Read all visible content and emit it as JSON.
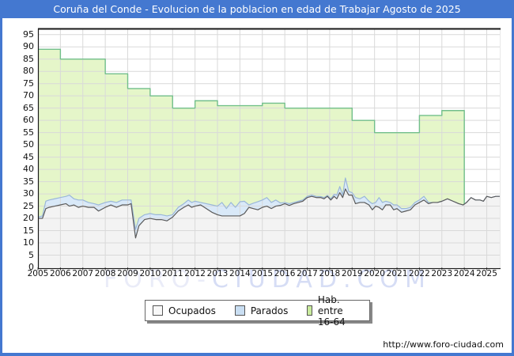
{
  "title": "Coruña del Conde - Evolucion de la poblacion en edad de Trabajar Agosto de 2025",
  "site_url": "http://www.foro-ciudad.com",
  "watermark": {
    "text_left": "FORO-",
    "text_right": "CIUDAD.COM"
  },
  "colors": {
    "title_bar": "#4478d0",
    "frame": "#4478d0",
    "grid": "#d9d9d9",
    "plot_border": "#1a1a1a",
    "watermark_left": "#eaecf8",
    "watermark_right": "#d6ddf5",
    "ocupados_line": "#5a5a5a",
    "ocupados_fill": "#f3f3f3",
    "parados_line": "#9bb7d9",
    "parados_fill": "#d9e9f8",
    "hab_line": "#72bf8b",
    "hab_fill": "#e5f6c9"
  },
  "legend": {
    "items": [
      {
        "label": "Ocupados",
        "color": "#f8f8f8"
      },
      {
        "label": "Parados",
        "color": "#c9def2"
      },
      {
        "label": "Hab. entre 16-64",
        "color": "#c9eb9d"
      }
    ]
  },
  "chart_data": {
    "type": "area",
    "title": "Coruña del Conde - Evolucion de la poblacion en edad de Trabajar Agosto de 2025",
    "xlim": [
      2005,
      2025.58
    ],
    "ylim": [
      0,
      97.5
    ],
    "grid": true,
    "x_tick_labels": [
      "2005",
      "2006",
      "2007",
      "2008",
      "2009",
      "2010",
      "2011",
      "2012",
      "2013",
      "2014",
      "2015",
      "2016",
      "2017",
      "2018",
      "2019",
      "2020",
      "2021",
      "2022",
      "2023",
      "2024",
      "2025"
    ],
    "y_tick_labels": [
      "0",
      "5",
      "10",
      "15",
      "20",
      "25",
      "30",
      "35",
      "40",
      "45",
      "50",
      "55",
      "60",
      "65",
      "70",
      "75",
      "80",
      "85",
      "90",
      "95"
    ],
    "series": [
      {
        "name": "Hab. entre 16-64",
        "type": "step-area-yearly",
        "start_year": 2005,
        "end_year": 2024,
        "values": [
          89,
          85,
          85,
          79,
          73,
          70,
          65,
          68,
          66,
          66,
          67,
          65,
          65,
          65,
          60,
          55,
          55,
          62,
          64
        ]
      },
      {
        "name": "Ocupados",
        "type": "line-area",
        "x": [
          2005.0,
          2005.2,
          2005.35,
          2005.5,
          2005.75,
          2006.0,
          2006.25,
          2006.4,
          2006.6,
          2006.8,
          2007.0,
          2007.25,
          2007.5,
          2007.7,
          2008.0,
          2008.25,
          2008.5,
          2008.75,
          2009.0,
          2009.15,
          2009.35,
          2009.5,
          2009.75,
          2010.0,
          2010.25,
          2010.5,
          2010.75,
          2011.0,
          2011.25,
          2011.5,
          2011.7,
          2011.85,
          2012.0,
          2012.25,
          2012.5,
          2012.75,
          2013.0,
          2013.2,
          2013.4,
          2013.6,
          2013.8,
          2014.0,
          2014.2,
          2014.4,
          2014.6,
          2014.8,
          2015.0,
          2015.2,
          2015.4,
          2015.6,
          2015.8,
          2016.0,
          2016.2,
          2016.4,
          2016.6,
          2016.8,
          2017.0,
          2017.2,
          2017.4,
          2017.6,
          2017.75,
          2017.9,
          2018.05,
          2018.2,
          2018.32,
          2018.45,
          2018.58,
          2018.7,
          2018.85,
          2019.0,
          2019.15,
          2019.35,
          2019.55,
          2019.75,
          2019.9,
          2020.05,
          2020.2,
          2020.35,
          2020.5,
          2020.7,
          2020.85,
          2021.0,
          2021.2,
          2021.4,
          2021.6,
          2021.8,
          2022.0,
          2022.2,
          2022.4,
          2022.6,
          2022.8,
          2023.0,
          2023.25,
          2023.5,
          2023.75,
          2023.95,
          2024.1,
          2024.3,
          2024.5,
          2024.7,
          2024.85,
          2025.0,
          2025.2,
          2025.4,
          2025.58
        ],
        "values": [
          20.0,
          20.0,
          24.0,
          24.5,
          25.0,
          25.5,
          26.0,
          25.0,
          25.5,
          24.5,
          25.0,
          24.5,
          24.5,
          23.0,
          24.5,
          25.5,
          24.5,
          25.5,
          25.5,
          26.0,
          12.0,
          17.0,
          19.5,
          20.0,
          19.5,
          19.5,
          19.0,
          20.5,
          23.0,
          24.5,
          25.5,
          24.5,
          25.0,
          25.5,
          24.0,
          22.5,
          21.5,
          21.0,
          21.0,
          21.0,
          21.0,
          21.0,
          22.0,
          24.5,
          24.0,
          23.5,
          24.5,
          25.0,
          24.0,
          25.0,
          25.3,
          26.0,
          25.3,
          26.0,
          26.5,
          27.0,
          28.5,
          29.0,
          28.5,
          28.5,
          28.0,
          29.0,
          27.5,
          29.0,
          28.0,
          30.5,
          28.5,
          32.0,
          29.5,
          29.5,
          26.0,
          26.5,
          26.5,
          25.5,
          23.5,
          25.0,
          24.5,
          23.5,
          25.5,
          25.5,
          23.5,
          24.0,
          22.5,
          23.0,
          23.5,
          25.5,
          26.5,
          27.5,
          26.0,
          26.5,
          26.5,
          27.0,
          28.0,
          27.0,
          26.0,
          25.5,
          26.5,
          28.5,
          27.5,
          27.5,
          27.0,
          29.0,
          28.5,
          29.0,
          29.0
        ]
      },
      {
        "name": "Parados",
        "type": "band-stacked-on-ocupados",
        "x": [
          2005.0,
          2005.2,
          2005.35,
          2005.5,
          2005.75,
          2006.0,
          2006.25,
          2006.4,
          2006.6,
          2006.8,
          2007.0,
          2007.25,
          2007.5,
          2007.7,
          2008.0,
          2008.25,
          2008.5,
          2008.75,
          2009.0,
          2009.15,
          2009.35,
          2009.5,
          2009.75,
          2010.0,
          2010.25,
          2010.5,
          2010.75,
          2011.0,
          2011.25,
          2011.5,
          2011.7,
          2011.85,
          2012.0,
          2012.25,
          2012.5,
          2012.75,
          2013.0,
          2013.2,
          2013.4,
          2013.6,
          2013.8,
          2014.0,
          2014.2,
          2014.4,
          2014.6,
          2014.8,
          2015.0,
          2015.2,
          2015.4,
          2015.6,
          2015.8,
          2016.0,
          2016.2,
          2016.4,
          2016.6,
          2016.8,
          2017.0,
          2017.2,
          2017.4,
          2017.6,
          2017.75,
          2017.9,
          2018.05,
          2018.2,
          2018.32,
          2018.45,
          2018.58,
          2018.7,
          2018.85,
          2019.0,
          2019.15,
          2019.35,
          2019.55,
          2019.75,
          2019.9,
          2020.05,
          2020.2,
          2020.35,
          2020.5,
          2020.7,
          2020.85,
          2021.0,
          2021.2,
          2021.4,
          2021.6,
          2021.8,
          2022.0,
          2022.2,
          2022.4,
          2022.6,
          2022.8,
          2023.0,
          2023.25,
          2023.5,
          2023.75,
          2023.95,
          2024.1,
          2024.3,
          2024.5,
          2024.7,
          2024.85,
          2025.0,
          2025.2,
          2025.4,
          2025.58
        ],
        "values": [
          0.5,
          1.0,
          3.0,
          3.0,
          3.0,
          3.0,
          3.0,
          4.5,
          2.5,
          3.0,
          2.5,
          2.0,
          1.5,
          2.5,
          2.0,
          1.5,
          2.0,
          2.0,
          2.0,
          1.5,
          3.5,
          3.0,
          2.0,
          2.0,
          2.0,
          2.0,
          2.0,
          1.0,
          1.5,
          1.5,
          2.0,
          2.0,
          2.0,
          1.0,
          2.0,
          3.0,
          3.5,
          5.5,
          3.0,
          5.5,
          3.5,
          5.8,
          5.0,
          1.0,
          2.2,
          3.3,
          3.0,
          3.5,
          2.5,
          2.5,
          1.0,
          0.5,
          0.7,
          0.5,
          0.5,
          0.5,
          0.5,
          0.5,
          0.5,
          0.4,
          0.5,
          0.4,
          0.5,
          0.8,
          1.5,
          2.5,
          1.0,
          4.5,
          1.5,
          1.0,
          2.5,
          1.5,
          2.5,
          1.5,
          2.5,
          1.5,
          4.0,
          3.0,
          1.5,
          1.0,
          2.0,
          1.5,
          1.5,
          1.0,
          1.0,
          1.0,
          1.0,
          1.5,
          0.5,
          0.0,
          0.0,
          0.0,
          0.0,
          0.0,
          0.0,
          0.0,
          0.0,
          0.0,
          0.0,
          0.0,
          0.0,
          0.0,
          0.0,
          0.0,
          0.0
        ]
      }
    ]
  }
}
